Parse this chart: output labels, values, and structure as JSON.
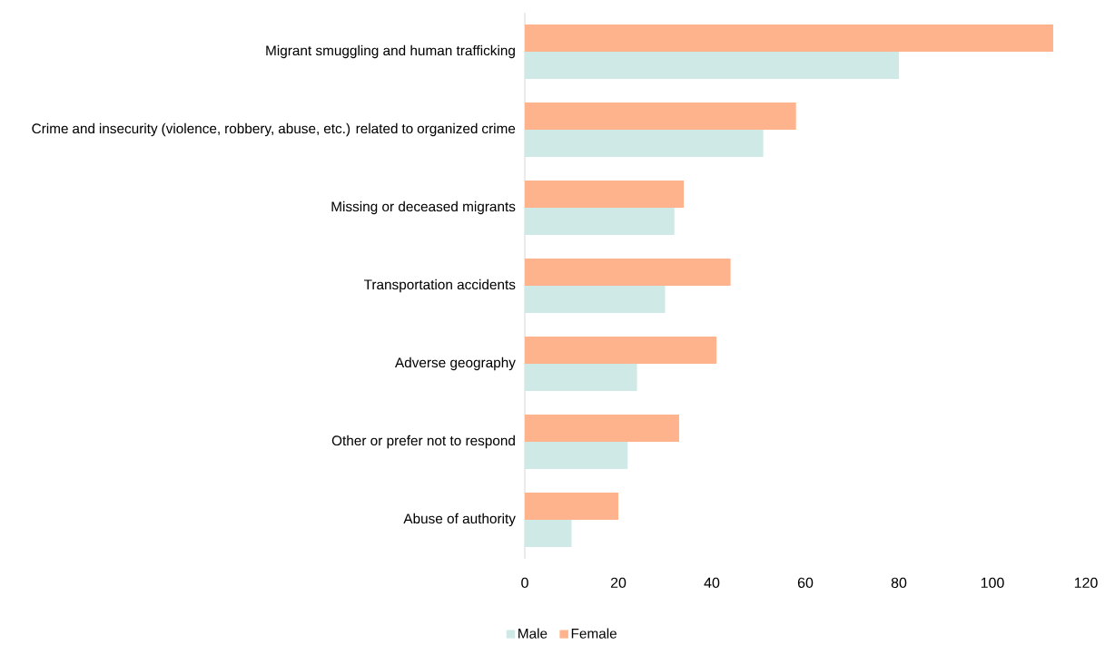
{
  "chart_data": {
    "type": "bar",
    "orientation": "horizontal",
    "categories": [
      "Migrant smuggling and human trafficking",
      "Crime and insecurity (violence, robbery, abuse, etc.) related to organized crime",
      "Missing or deceased migrants",
      "Transportation accidents",
      "Adverse geography",
      "Other or prefer not to respond",
      "Abuse of authority"
    ],
    "series": [
      {
        "name": "Male",
        "color": "#cfe9e7",
        "values": [
          80,
          51,
          32,
          30,
          24,
          22,
          10
        ]
      },
      {
        "name": "Female",
        "color": "#ffb38c",
        "values": [
          113,
          58,
          34,
          44,
          41,
          33,
          20
        ]
      }
    ],
    "xlim": [
      0,
      120
    ],
    "xticks": [
      0,
      20,
      40,
      60,
      80,
      100,
      120
    ],
    "grid": false,
    "legend": "bottom"
  }
}
